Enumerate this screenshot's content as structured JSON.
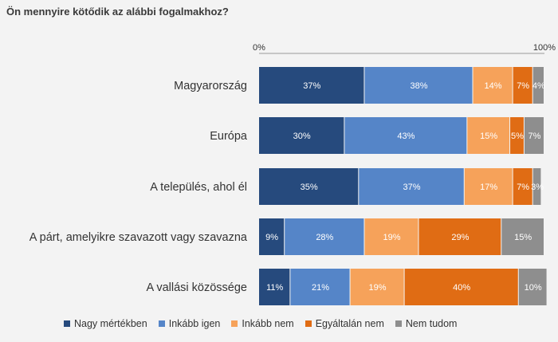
{
  "title": "Ön mennyire kötődik az alábbi fogalmakhoz?",
  "chart_data": {
    "type": "bar",
    "orientation": "horizontal-stacked-100",
    "xlim": [
      0,
      100
    ],
    "tick_labels": [
      "0%",
      "100%"
    ],
    "categories": [
      "Magyarország",
      "Európa",
      "A település, ahol él",
      "A párt, amelyikre szavazott vagy szavazna",
      "A vallási közössége"
    ],
    "series": [
      {
        "name": "Nagy mértékben",
        "color": "#264a7d",
        "values": [
          37,
          30,
          35,
          9,
          11
        ]
      },
      {
        "name": "Inkább igen",
        "color": "#5585c8",
        "values": [
          38,
          43,
          37,
          28,
          21
        ]
      },
      {
        "name": "Inkább nem",
        "color": "#f6a25a",
        "values": [
          14,
          15,
          17,
          19,
          19
        ]
      },
      {
        "name": "Egyáltalán nem",
        "color": "#e06c14",
        "values": [
          7,
          5,
          7,
          29,
          40
        ]
      },
      {
        "name": "Nem tudom",
        "color": "#8e8e8e",
        "values": [
          4,
          7,
          3,
          15,
          10
        ]
      }
    ],
    "legend_position": "bottom"
  }
}
